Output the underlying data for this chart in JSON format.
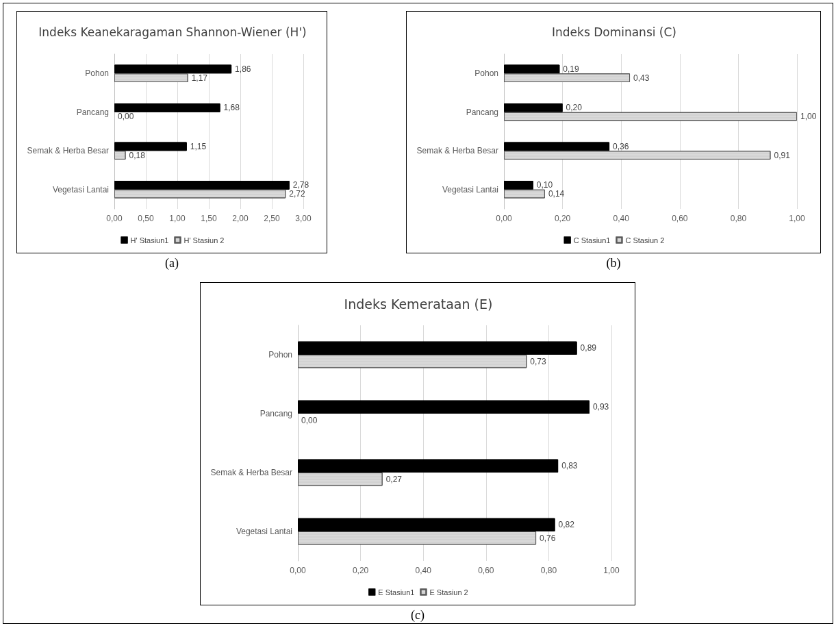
{
  "chart_data": [
    {
      "type": "bar",
      "orientation": "horizontal",
      "title": "Indeks Keanekaragaman Shannon-Wiener (H')",
      "categories": [
        "Pohon",
        "Pancang",
        "Semak & Herba Besar",
        "Vegetasi Lantai"
      ],
      "series": [
        {
          "name": "H' Stasiun1",
          "color": "#000000",
          "values": [
            1.86,
            1.68,
            1.15,
            2.78
          ],
          "value_labels": [
            "1,86",
            "1,68",
            "1,15",
            "2,78"
          ]
        },
        {
          "name": "H' Stasiun 2",
          "color": "#d9d9d9",
          "values": [
            1.17,
            0.0,
            0.18,
            2.72
          ],
          "value_labels": [
            "1,17",
            "0,00",
            "0,18",
            "2,72"
          ]
        }
      ],
      "xlim": [
        0,
        3
      ],
      "xticks": [
        {
          "value": 0,
          "label": "0,00"
        },
        {
          "value": 0.5,
          "label": "0,50"
        },
        {
          "value": 1,
          "label": "1,00"
        },
        {
          "value": 1.5,
          "label": "1,50"
        },
        {
          "value": 2,
          "label": "2,00"
        },
        {
          "value": 2.5,
          "label": "2,50"
        },
        {
          "value": 3,
          "label": "3,00"
        }
      ],
      "grid": "x",
      "legend": "bottom",
      "annotations": [
        "(a)"
      ]
    },
    {
      "type": "bar",
      "orientation": "horizontal",
      "title": "Indeks Dominansi (C)",
      "categories": [
        "Pohon",
        "Pancang",
        "Semak & Herba Besar",
        "Vegetasi Lantai"
      ],
      "series": [
        {
          "name": "C Stasiun1",
          "color": "#000000",
          "values": [
            0.19,
            0.2,
            0.36,
            0.1
          ],
          "value_labels": [
            "0,19",
            "0,20",
            "0,36",
            "0,10"
          ]
        },
        {
          "name": "C Stasiun 2",
          "color": "#d9d9d9",
          "values": [
            0.43,
            1.0,
            0.91,
            0.14
          ],
          "value_labels": [
            "0,43",
            "1,00",
            "0,91",
            "0,14"
          ]
        }
      ],
      "xlim": [
        0,
        1
      ],
      "xticks": [
        {
          "value": 0,
          "label": "0,00"
        },
        {
          "value": 0.2,
          "label": "0,20"
        },
        {
          "value": 0.4,
          "label": "0,40"
        },
        {
          "value": 0.6,
          "label": "0,60"
        },
        {
          "value": 0.8,
          "label": "0,80"
        },
        {
          "value": 1,
          "label": "1,00"
        }
      ],
      "grid": "x",
      "legend": "bottom",
      "annotations": [
        "(b)"
      ]
    },
    {
      "type": "bar",
      "orientation": "horizontal",
      "title": "Indeks Kemerataan (E)",
      "categories": [
        "Pohon",
        "Pancang",
        "Semak & Herba Besar",
        "Vegetasi Lantai"
      ],
      "series": [
        {
          "name": "E Stasiun1",
          "color": "#000000",
          "values": [
            0.89,
            0.93,
            0.83,
            0.82
          ],
          "value_labels": [
            "0,89",
            "0,93",
            "0,83",
            "0,82"
          ]
        },
        {
          "name": "E Stasiun 2",
          "color": "#d9d9d9",
          "values": [
            0.73,
            0.0,
            0.27,
            0.76
          ],
          "value_labels": [
            "0,73",
            "0,00",
            "0,27",
            "0,76"
          ]
        }
      ],
      "xlim": [
        0,
        1
      ],
      "xticks": [
        {
          "value": 0,
          "label": "0,00"
        },
        {
          "value": 0.2,
          "label": "0,20"
        },
        {
          "value": 0.4,
          "label": "0,40"
        },
        {
          "value": 0.6,
          "label": "0,60"
        },
        {
          "value": 0.8,
          "label": "0,80"
        },
        {
          "value": 1,
          "label": "1,00"
        }
      ],
      "grid": "x",
      "legend": "bottom",
      "annotations": [
        "(c)"
      ]
    }
  ]
}
